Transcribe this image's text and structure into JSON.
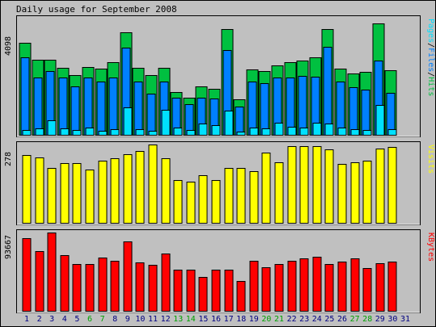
{
  "chart_data": {
    "type": "bar",
    "title": "Daily usage for September 2008",
    "days": [
      "1",
      "2",
      "3",
      "4",
      "5",
      "6",
      "7",
      "8",
      "9",
      "10",
      "11",
      "12",
      "13",
      "14",
      "15",
      "16",
      "17",
      "18",
      "19",
      "20",
      "21",
      "22",
      "23",
      "24",
      "25",
      "26",
      "27",
      "28",
      "29",
      "30",
      "31"
    ],
    "weekend_days": [
      "6",
      "7",
      "13",
      "14",
      "20",
      "21",
      "27",
      "28"
    ],
    "colors": {
      "background": "#c0c0c0",
      "hits": "#00c040",
      "files": "#0080ff",
      "pages": "#00e0ff",
      "visits": "#ffff00",
      "kbytes": "#ff0000",
      "weekday_label": "#000080",
      "weekend_label": "#00a000"
    },
    "panels": [
      {
        "key": "hits_files_pages",
        "max_label": "4098",
        "ymax": 4098,
        "legend": [
          {
            "text": "Pages",
            "color": "#00e0ff"
          },
          {
            "text": "/",
            "color": "#000000"
          },
          {
            "text": "Files",
            "color": "#0080ff"
          },
          {
            "text": "/",
            "color": "#000000"
          },
          {
            "text": "Hits",
            "color": "#00c040"
          }
        ],
        "series": [
          {
            "name": "Hits",
            "color": "#00c040",
            "values": [
              3250,
              2650,
              2650,
              2370,
              2120,
              2390,
              2330,
              2570,
              3620,
              2370,
              2120,
              2370,
              1520,
              1320,
              1710,
              1620,
              3730,
              1240,
              2300,
              2240,
              2450,
              2560,
              2610,
              2720,
              3720,
              2330,
              2160,
              2230,
              3940,
              2280,
              0
            ]
          },
          {
            "name": "Files",
            "color": "#0080ff",
            "values": [
              2730,
              2010,
              2250,
              2010,
              1700,
              2030,
              1880,
              2010,
              3060,
              1880,
              1460,
              1880,
              1320,
              1080,
              1320,
              1290,
              2990,
              990,
              1880,
              1830,
              2010,
              2030,
              2090,
              2060,
              3100,
              1880,
              1690,
              1580,
              2630,
              1490,
              0
            ]
          },
          {
            "name": "Pages",
            "color": "#00e0ff",
            "values": [
              180,
              220,
              500,
              230,
              160,
              260,
              150,
              190,
              970,
              200,
              140,
              880,
              260,
              160,
              390,
              340,
              850,
              110,
              260,
              240,
              430,
              280,
              270,
              420,
              400,
              260,
              190,
              160,
              1040,
              200,
              0
            ]
          }
        ]
      },
      {
        "key": "visits",
        "max_label": "278",
        "ymax": 278,
        "legend": [
          {
            "text": "Visits",
            "color": "#ffff00"
          }
        ],
        "series": [
          {
            "name": "Visits",
            "color": "#ffff00",
            "values": [
              240,
              231,
              196,
              211,
              211,
              190,
              220,
              228,
              245,
              255,
              278,
              230,
              153,
              146,
              168,
              152,
              195,
              195,
              182,
              248,
              215,
              272,
              272,
              272,
              260,
              210,
              215,
              222,
              263,
              270,
              0
            ]
          }
        ]
      },
      {
        "key": "kbytes",
        "max_label": "93667",
        "ymax": 93667,
        "legend": [
          {
            "text": "KBytes",
            "color": "#ff0000"
          }
        ],
        "series": [
          {
            "name": "KBytes",
            "color": "#ff0000",
            "values": [
              87000,
              71500,
              93667,
              66300,
              55900,
              55900,
              64000,
              59500,
              83000,
              58000,
              55000,
              69000,
              49200,
              49500,
              40500,
              49200,
              49200,
              36000,
              59500,
              52000,
              56200,
              59500,
              62500,
              64500,
              55700,
              59300,
              62800,
              51000,
              56900,
              58500,
              0
            ]
          }
        ]
      }
    ]
  }
}
